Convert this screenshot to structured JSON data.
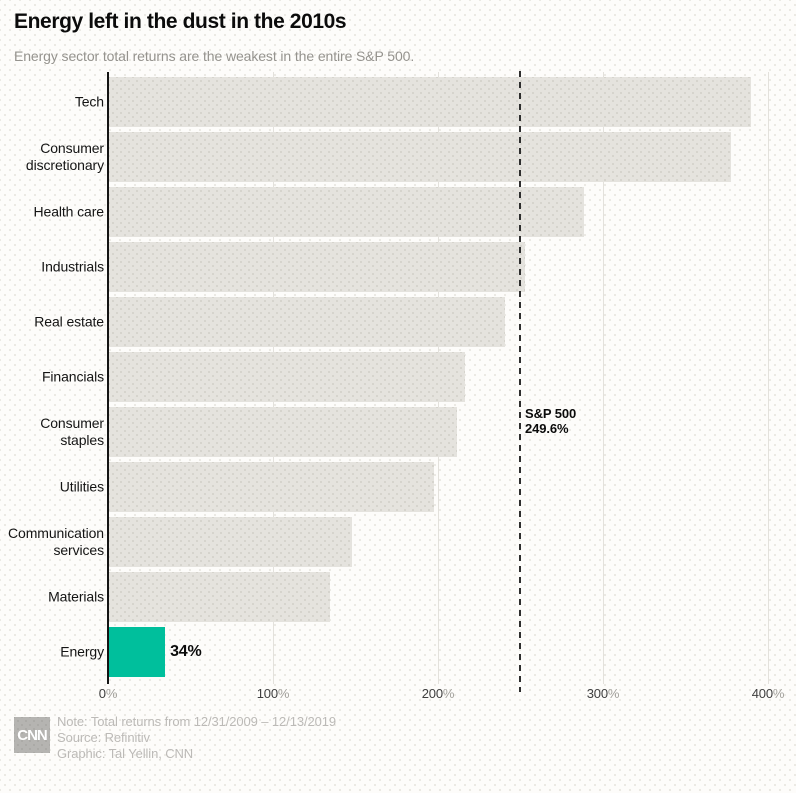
{
  "header": {
    "title": "Energy left in the dust in the 2010s",
    "subtitle": "Energy sector total returns are the weakest in the entire S&P 500."
  },
  "chart_data": {
    "type": "bar",
    "orientation": "horizontal",
    "title": "Energy left in the dust in the 2010s",
    "subtitle": "Energy sector total returns are the weakest in the entire S&P 500.",
    "categories": [
      "Tech",
      "Consumer discretionary",
      "Health care",
      "Industrials",
      "Real estate",
      "Financials",
      "Consumer staples",
      "Utilities",
      "Communication services",
      "Materials",
      "Energy"
    ],
    "values": [
      389,
      377,
      288,
      252,
      240,
      216,
      211,
      197,
      147,
      134,
      34
    ],
    "unit": "%",
    "xlim": [
      0,
      400
    ],
    "x_ticks": [
      {
        "value": 0,
        "label": "0%"
      },
      {
        "value": 100,
        "label": "100%"
      },
      {
        "value": 200,
        "label": "200%"
      },
      {
        "value": 300,
        "label": "300%"
      },
      {
        "value": 400,
        "label": "400%"
      }
    ],
    "grid": "vertical-only",
    "bar_labels": [
      {
        "category": "Energy",
        "text": "34%"
      }
    ],
    "reference_line": {
      "value": 249.6,
      "label": "S&P 500",
      "value_label": "249.6%",
      "style": "dashed"
    },
    "colors": {
      "bar_default": "#e5e3de",
      "bar_highlight": "#00bf9c",
      "highlight_category": "Energy",
      "reference_line": "#2e2e2e",
      "axis": "#141414"
    }
  },
  "footer": {
    "logo_text": "CNN",
    "note": "Note: Total returns from 12/31/2009 – 12/13/2019",
    "source": "Source: Refinitiv",
    "graphic": "Graphic: Tal Yellin, CNN"
  }
}
